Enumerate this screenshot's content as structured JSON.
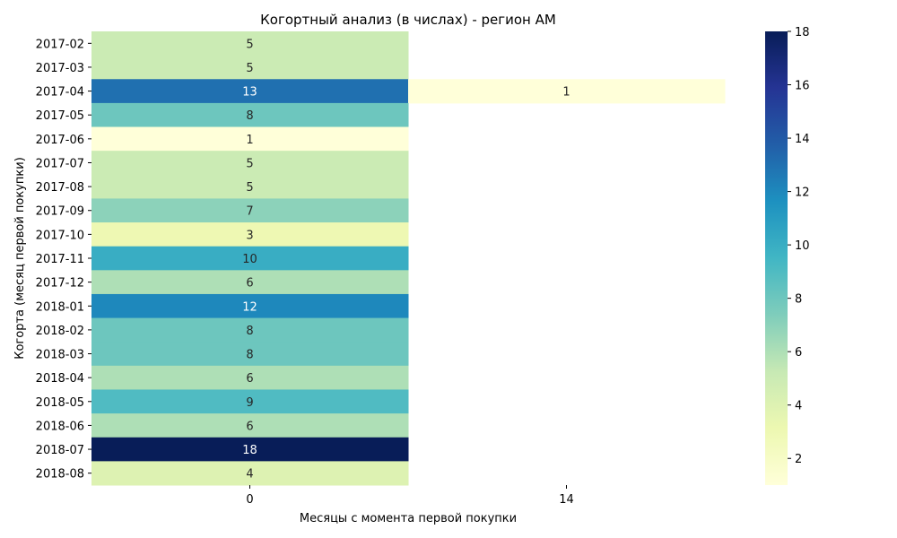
{
  "chart_data": {
    "type": "heatmap",
    "title": "Когортный анализ (в числах) - регион AM",
    "xlabel": "Месяцы с момента первой покупки",
    "ylabel": "Когорта (месяц первой покупки)",
    "x_categories": [
      "0",
      "14"
    ],
    "y_categories": [
      "2017-02",
      "2017-03",
      "2017-04",
      "2017-05",
      "2017-06",
      "2017-07",
      "2017-08",
      "2017-09",
      "2017-10",
      "2017-11",
      "2017-12",
      "2018-01",
      "2018-02",
      "2018-03",
      "2018-04",
      "2018-05",
      "2018-06",
      "2018-07",
      "2018-08"
    ],
    "values": [
      [
        5,
        null
      ],
      [
        5,
        null
      ],
      [
        13,
        1
      ],
      [
        8,
        null
      ],
      [
        1,
        null
      ],
      [
        5,
        null
      ],
      [
        5,
        null
      ],
      [
        7,
        null
      ],
      [
        3,
        null
      ],
      [
        10,
        null
      ],
      [
        6,
        null
      ],
      [
        12,
        null
      ],
      [
        8,
        null
      ],
      [
        8,
        null
      ],
      [
        6,
        null
      ],
      [
        9,
        null
      ],
      [
        6,
        null
      ],
      [
        18,
        null
      ],
      [
        4,
        null
      ]
    ],
    "colormap": "YlGnBu",
    "vmin": 1,
    "vmax": 18,
    "colorbar_ticks": [
      "2",
      "4",
      "6",
      "8",
      "10",
      "12",
      "14",
      "16",
      "18"
    ],
    "annotations": true,
    "grid": false
  }
}
